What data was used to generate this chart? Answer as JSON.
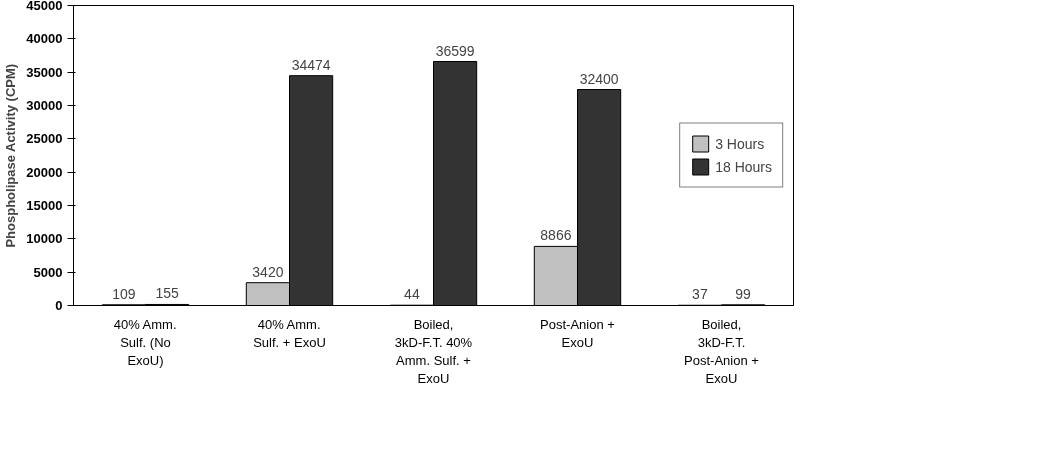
{
  "chart_data": {
    "type": "bar",
    "ylabel": "Phospholipase Activity (CPM)",
    "categories": [
      "40% Amm. Sulf. (No ExoU)",
      "40% Amm. Sulf. + ExoU",
      "Boiled, 3kD-F.T. 40% Amm. Sulf. + ExoU",
      "Post-Anion + ExoU",
      "Boiled, 3kD-F.T. Post-Anion + ExoU"
    ],
    "series": [
      {
        "name": "3 Hours",
        "color": "#c0c0c0",
        "values": [
          109,
          3420,
          44,
          8866,
          37
        ]
      },
      {
        "name": "18 Hours",
        "color": "#333333",
        "values": [
          155,
          34474,
          36599,
          32400,
          99
        ]
      }
    ],
    "ylim": [
      0,
      45000
    ],
    "yticks": [
      0,
      5000,
      10000,
      15000,
      20000,
      25000,
      30000,
      35000,
      40000,
      45000
    ],
    "data_labels": true,
    "legend": "right",
    "grid": false
  }
}
